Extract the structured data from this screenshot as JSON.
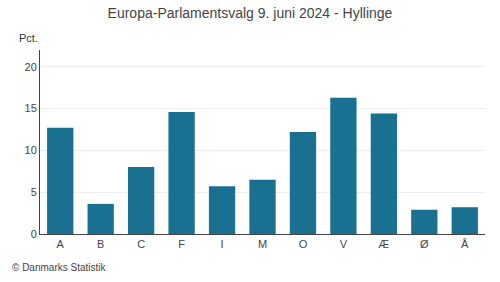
{
  "chart_data": {
    "type": "bar",
    "title": "Europa-Parlamentsvalg 9. juni 2024 - Hyllinge",
    "categories": [
      "A",
      "B",
      "C",
      "F",
      "I",
      "M",
      "O",
      "V",
      "Æ",
      "Ø",
      "Å"
    ],
    "values": [
      12.7,
      3.6,
      8.0,
      14.6,
      5.7,
      6.5,
      12.2,
      16.3,
      14.4,
      2.9,
      3.2
    ],
    "color": "#1a7090",
    "ylabel": "Pct.",
    "annotations": [
      "© Danmarks Statistik"
    ],
    "ylim": [
      0,
      22
    ],
    "yticks": [
      0,
      5,
      10,
      15,
      20
    ],
    "grid": true
  }
}
